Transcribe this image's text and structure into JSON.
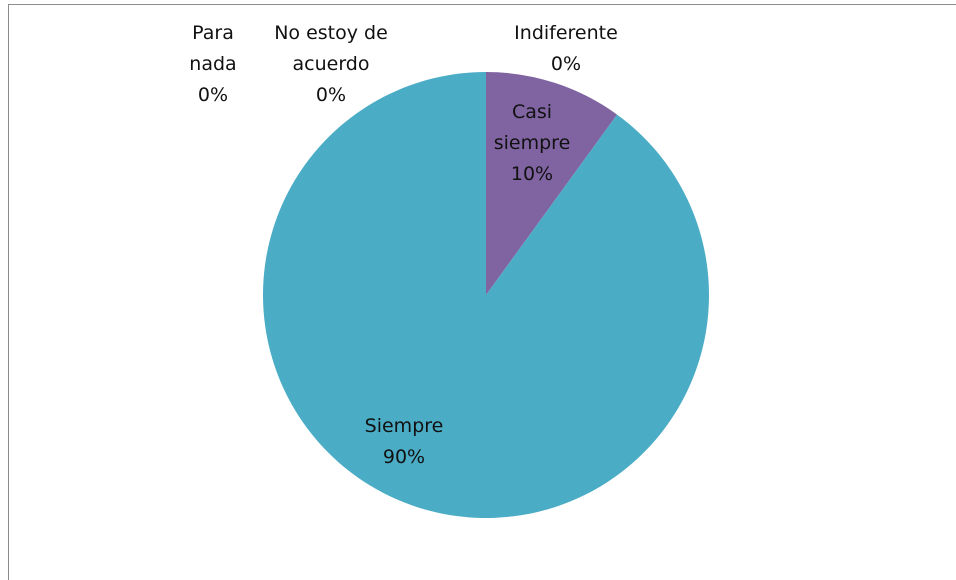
{
  "chart_data": {
    "type": "pie",
    "categories": [
      "Para nada",
      "No estoy de acuerdo",
      "Indiferente",
      "Casi siempre",
      "Siempre"
    ],
    "values": [
      0,
      0,
      0,
      10,
      90
    ],
    "value_labels": [
      "0%",
      "0%",
      "0%",
      "10%",
      "90%"
    ],
    "colors": [
      "#4f81bd",
      "#c0504d",
      "#9bbb59",
      "#8064a2",
      "#4bacc6"
    ]
  }
}
